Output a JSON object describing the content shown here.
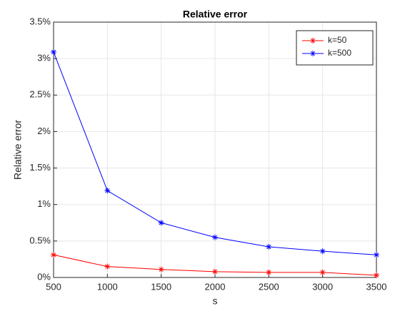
{
  "chart_data": {
    "type": "line",
    "title": "Relative error",
    "x_label": "s",
    "y_label": "Relative error",
    "x": [
      500,
      1000,
      1500,
      2000,
      2500,
      3000,
      3500
    ],
    "series": [
      {
        "name": "k=50",
        "color": "#ff0000",
        "values": [
          0.31,
          0.15,
          0.11,
          0.08,
          0.07,
          0.07,
          0.03
        ]
      },
      {
        "name": "k=500",
        "color": "#0000ff",
        "values": [
          3.09,
          1.19,
          0.75,
          0.55,
          0.42,
          0.36,
          0.31
        ]
      }
    ],
    "xlim": [
      500,
      3500
    ],
    "xticks": [
      500,
      1000,
      1500,
      2000,
      2500,
      3000,
      3500
    ],
    "ylim": [
      0,
      3.5
    ],
    "yticks": [
      {
        "value": 0,
        "label": "0%"
      },
      {
        "value": 0.5,
        "label": "0.5%"
      },
      {
        "value": 1,
        "label": "1%"
      },
      {
        "value": 1.5,
        "label": "1.5%"
      },
      {
        "value": 2,
        "label": "2%"
      },
      {
        "value": 2.5,
        "label": "2.5%"
      },
      {
        "value": 3,
        "label": "3%"
      },
      {
        "value": 3.5,
        "label": "3.5%"
      }
    ],
    "grid": true,
    "legend": "northeast",
    "marker": "asterisk"
  }
}
